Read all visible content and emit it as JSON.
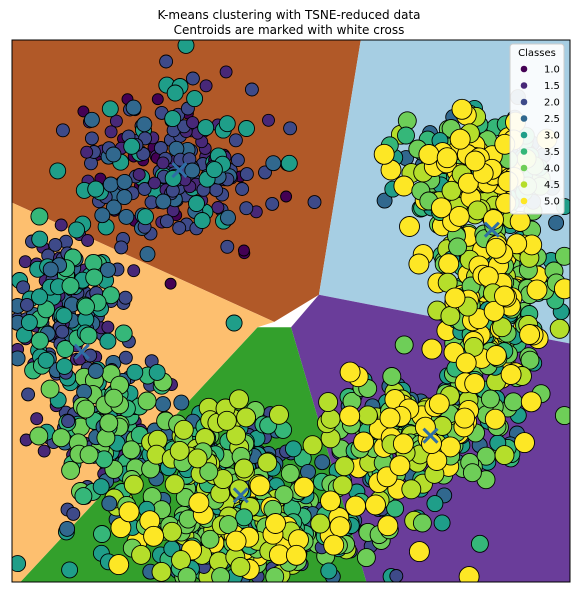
{
  "chart_data": {
    "type": "scatter",
    "title": "K-means clustering with TSNE-reduced data",
    "subtitle": "Centroids are marked with white cross",
    "xlabel": "",
    "ylabel": "",
    "xlim": [
      0,
      100
    ],
    "ylim": [
      0,
      100
    ],
    "grid": false,
    "axis_ticks": false,
    "legend": {
      "title": "Classes",
      "placement": "top-right",
      "entries": [
        "1.0",
        "1.5",
        "2.0",
        "2.5",
        "3.0",
        "3.5",
        "4.0",
        "4.5",
        "5.0"
      ]
    },
    "class_colors": [
      "#440154",
      "#482878",
      "#3e4a89",
      "#31688e",
      "#26828e",
      "#1f9e89",
      "#35b779",
      "#6ece58",
      "#b5de2b",
      "#fde725"
    ],
    "region_colors": [
      "#b15928",
      "#a6cee3",
      "#ff7f00",
      "#6a3d9a",
      "#33a02c",
      "#fdbf6f"
    ],
    "regions": [
      {
        "name": "cluster-brown",
        "color": "#b15928",
        "polygon": [
          [
            0,
            100
          ],
          [
            62.5,
            100
          ],
          [
            55,
            53
          ],
          [
            47,
            48
          ],
          [
            0,
            70
          ]
        ]
      },
      {
        "name": "cluster-lightblue",
        "color": "#a6cee3",
        "polygon": [
          [
            62.5,
            100
          ],
          [
            100,
            100
          ],
          [
            100,
            44
          ],
          [
            55,
            53
          ]
        ]
      },
      {
        "name": "cluster-purple",
        "color": "#6a3d9a",
        "polygon": [
          [
            100,
            44
          ],
          [
            100,
            0
          ],
          [
            63.5,
            0
          ],
          [
            50,
            47
          ],
          [
            55,
            53
          ]
        ]
      },
      {
        "name": "cluster-green",
        "color": "#33a02c",
        "polygon": [
          [
            63.5,
            0
          ],
          [
            1.5,
            0
          ],
          [
            44,
            47
          ],
          [
            50,
            47
          ]
        ]
      },
      {
        "name": "cluster-orange",
        "color": "#fdbf6f",
        "polygon": [
          [
            0,
            70
          ],
          [
            47,
            48
          ],
          [
            44,
            47
          ],
          [
            1.5,
            0
          ],
          [
            0,
            0
          ]
        ]
      }
    ],
    "centroids": [
      {
        "x": 12.5,
        "y": 42.5
      },
      {
        "x": 30,
        "y": 76
      },
      {
        "x": 86,
        "y": 65
      },
      {
        "x": 75,
        "y": 27
      },
      {
        "x": 41,
        "y": 16
      }
    ],
    "series": [
      {
        "name": "1.0",
        "class": 1.0,
        "size": 5.5
      },
      {
        "name": "1.5",
        "class": 1.5,
        "size": 6.0
      },
      {
        "name": "2.0",
        "class": 2.0,
        "size": 6.5
      },
      {
        "name": "2.5",
        "class": 2.5,
        "size": 7.5
      },
      {
        "name": "3.0",
        "class": 3.0,
        "size": 8.0
      },
      {
        "name": "3.5",
        "class": 3.5,
        "size": 8.5
      },
      {
        "name": "4.0",
        "class": 4.0,
        "size": 9.0
      },
      {
        "name": "4.5",
        "class": 4.5,
        "size": 9.5
      },
      {
        "name": "5.0",
        "class": 5.0,
        "size": 10.0
      }
    ],
    "point_groups": [
      {
        "name": "upper-left-cloud",
        "cx": 28,
        "cy": 76,
        "rx": 16,
        "ry": 14,
        "n": 230,
        "classes": [
          1.0,
          1.5,
          2.0,
          2.0,
          2.5,
          3.0
        ]
      },
      {
        "name": "left-cloud",
        "cx": 9,
        "cy": 50,
        "rx": 8,
        "ry": 14,
        "n": 170,
        "classes": [
          1.5,
          2.0,
          2.0,
          2.5,
          3.0,
          3.5
        ]
      },
      {
        "name": "left-lower-cloud",
        "cx": 17,
        "cy": 28,
        "rx": 11,
        "ry": 11,
        "n": 150,
        "classes": [
          1.5,
          2.0,
          2.5,
          3.0,
          3.5,
          4.0
        ]
      },
      {
        "name": "bottom-band",
        "cx": 43,
        "cy": 10,
        "rx": 25,
        "ry": 8,
        "n": 360,
        "classes": [
          2.0,
          2.5,
          3.0,
          3.5,
          4.0,
          4.0,
          4.5,
          5.0
        ]
      },
      {
        "name": "lower-middle-cloud",
        "cx": 38,
        "cy": 23,
        "rx": 11,
        "ry": 8,
        "n": 170,
        "classes": [
          2.0,
          2.5,
          3.0,
          3.5,
          4.0,
          4.5
        ]
      },
      {
        "name": "right-lower-arc",
        "cx": 72,
        "cy": 27,
        "rx": 14,
        "ry": 9,
        "n": 240,
        "classes": [
          2.5,
          3.0,
          3.5,
          4.0,
          4.0,
          4.5,
          5.0
        ]
      },
      {
        "name": "right-vertical-band",
        "cx": 86,
        "cy": 52,
        "rx": 10,
        "ry": 17,
        "n": 300,
        "classes": [
          3.0,
          3.5,
          4.0,
          4.0,
          4.5,
          5.0,
          5.0
        ]
      },
      {
        "name": "upper-right-loop",
        "cx": 82,
        "cy": 76,
        "rx": 12,
        "ry": 9,
        "n": 200,
        "classes": [
          2.5,
          3.0,
          3.5,
          4.0,
          4.5,
          5.0,
          5.0
        ]
      }
    ]
  }
}
